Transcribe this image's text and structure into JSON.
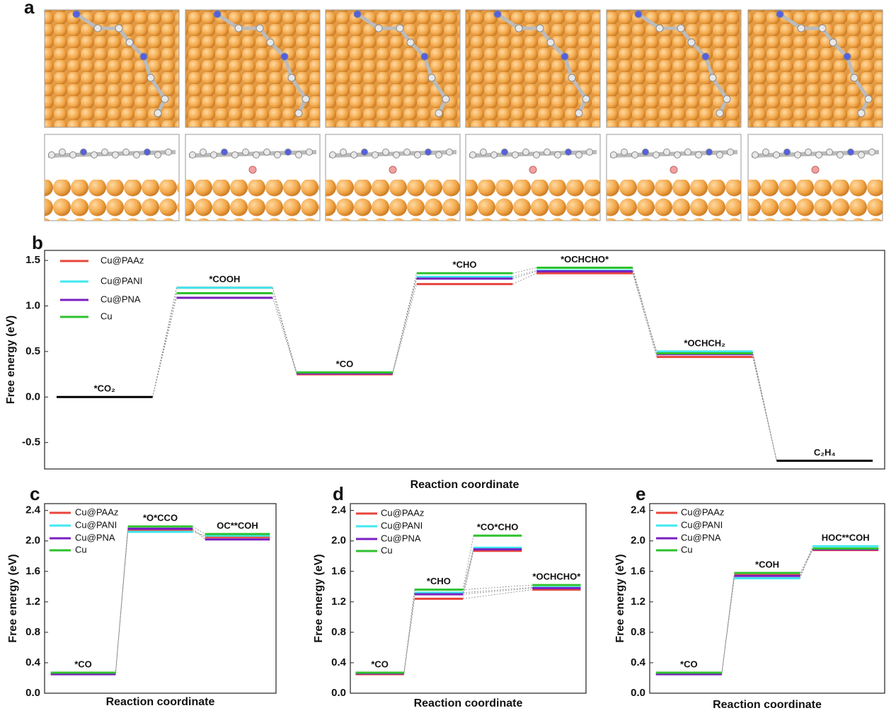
{
  "panel_a": {
    "label": "a"
  },
  "chart_data": [
    {
      "type": "energy",
      "label": "b",
      "xlabel": "Reaction coordinate",
      "ylabel": "Free energy (eV)",
      "categories": [
        "*CO₂",
        "*COOH",
        "*CO",
        "*CHO",
        "*OCHCHO*",
        "*OCHCH₂",
        "C₂H₄"
      ],
      "shared_color": "#000000",
      "series": [
        {
          "name": "Cu@PAAz",
          "color": "#e8453c",
          "values": [
            0,
            1.2,
            0.25,
            1.24,
            1.36,
            0.44,
            -0.7
          ]
        },
        {
          "name": "Cu@PANI",
          "color": "#3fe8ef",
          "values": [
            0,
            1.2,
            0.27,
            1.32,
            1.39,
            0.5,
            -0.7
          ]
        },
        {
          "name": "Cu@PNA",
          "color": "#7a1fc2",
          "values": [
            0,
            1.09,
            0.26,
            1.3,
            1.38,
            0.47,
            -0.7
          ]
        },
        {
          "name": "Cu",
          "color": "#2ec22e",
          "values": [
            0,
            1.14,
            0.27,
            1.36,
            1.42,
            0.48,
            -0.7
          ]
        }
      ],
      "ylim": [
        -0.79,
        1.61
      ],
      "yticks": [
        -0.5,
        {
          "value": 0,
          "label": "0.0"
        },
        0.5,
        {
          "value": 1,
          "label": "1.0"
        },
        1.5
      ]
    },
    {
      "type": "energy",
      "label": "c",
      "xlabel": "Reaction coordinate",
      "ylabel": "Free energy (eV)",
      "categories": [
        "*CO",
        "*O*CCO",
        "OC**COH"
      ],
      "series": [
        {
          "name": "Cu@PAAz",
          "color": "#e8453c",
          "values": [
            0.25,
            2.14,
            2.05
          ]
        },
        {
          "name": "Cu@PANI",
          "color": "#3fe8ef",
          "values": [
            0.26,
            2.12,
            2.07
          ]
        },
        {
          "name": "Cu@PNA",
          "color": "#7a1fc2",
          "values": [
            0.25,
            2.16,
            2.02
          ]
        },
        {
          "name": "Cu",
          "color": "#2ec22e",
          "values": [
            0.27,
            2.19,
            2.09
          ]
        }
      ],
      "ylim": [
        0,
        2.49
      ],
      "yticks": [
        {
          "value": 0,
          "label": "0.0"
        },
        0.4,
        0.8,
        1.2,
        1.6,
        {
          "value": 2,
          "label": "2.0"
        },
        2.4
      ]
    },
    {
      "type": "energy",
      "label": "d",
      "xlabel": "Reaction coordinate",
      "ylabel": "Free energy (eV)",
      "categories": [
        "*CO",
        "*CHO",
        "*CO*CHO",
        "*OCHCHO*"
      ],
      "links": [
        [
          0,
          1
        ],
        [
          1,
          2
        ],
        [
          1,
          3
        ]
      ],
      "series": [
        {
          "name": "Cu@PAAz",
          "color": "#e8453c",
          "values": [
            0.25,
            1.24,
            1.87,
            1.36
          ]
        },
        {
          "name": "Cu@PANI",
          "color": "#3fe8ef",
          "values": [
            0.27,
            1.32,
            1.91,
            1.39
          ]
        },
        {
          "name": "Cu@PNA",
          "color": "#7a1fc2",
          "values": [
            0.26,
            1.3,
            1.89,
            1.38
          ]
        },
        {
          "name": "Cu",
          "color": "#2ec22e",
          "values": [
            0.27,
            1.36,
            2.07,
            1.42
          ]
        }
      ],
      "ylim": [
        0,
        2.49
      ],
      "yticks": [
        {
          "value": 0,
          "label": "0.0"
        },
        0.4,
        0.8,
        1.2,
        1.6,
        {
          "value": 2,
          "label": "2.0"
        },
        2.4
      ]
    },
    {
      "type": "energy",
      "label": "e",
      "xlabel": "Reaction coordinate",
      "ylabel": "Free energy (eV)",
      "categories": [
        "*CO",
        "*COH",
        "HOC**COH"
      ],
      "series": [
        {
          "name": "Cu@PAAz",
          "color": "#e8453c",
          "values": [
            0.25,
            1.55,
            1.88
          ]
        },
        {
          "name": "Cu@PANI",
          "color": "#3fe8ef",
          "values": [
            0.26,
            1.51,
            1.93
          ]
        },
        {
          "name": "Cu@PNA",
          "color": "#7a1fc2",
          "values": [
            0.25,
            1.54,
            1.89
          ]
        },
        {
          "name": "Cu",
          "color": "#2ec22e",
          "values": [
            0.27,
            1.58,
            1.9
          ]
        }
      ],
      "ylim": [
        0,
        2.49
      ],
      "yticks": [
        {
          "value": 0,
          "label": "0.0"
        },
        0.4,
        0.8,
        1.2,
        1.6,
        {
          "value": 2,
          "label": "2.0"
        },
        2.4
      ]
    }
  ]
}
